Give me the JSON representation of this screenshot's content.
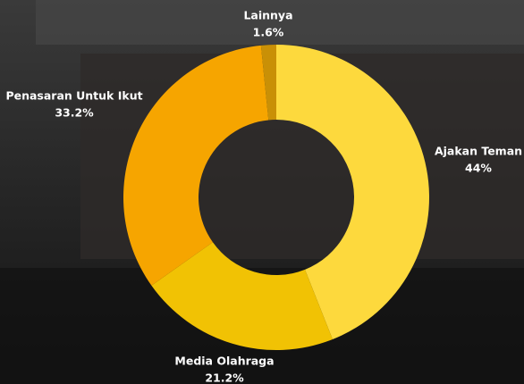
{
  "chart_data": {
    "type": "donut",
    "categories": [
      "Ajakan Teman",
      "Media Olahraga",
      "Penasaran Untuk Ikut",
      "Lainnya"
    ],
    "values": [
      44,
      21.2,
      33.2,
      1.6
    ],
    "value_labels": [
      "44%",
      "21.2%",
      "33.2%",
      "1.6%"
    ],
    "colors": [
      "#fdd93d",
      "#f1c204",
      "#f6a500",
      "#c99006"
    ]
  }
}
